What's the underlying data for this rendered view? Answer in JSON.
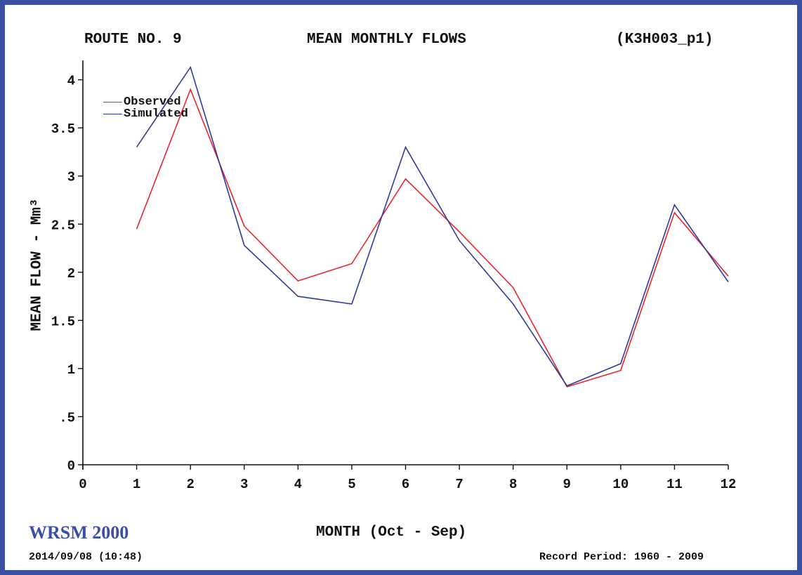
{
  "header": {
    "left": "ROUTE NO. 9",
    "center": "MEAN MONTHLY FLOWS",
    "right": "(K3H003_p1)"
  },
  "footer": {
    "brand": "WRSM 2000",
    "date": "2014/09/08 (10:48)",
    "record_period": "Record Period: 1960 - 2009"
  },
  "colors": {
    "frame": "#3b4fa3",
    "observed": "#e8262d",
    "simulated": "#2e3a9a"
  },
  "chart_data": {
    "type": "line",
    "title": "MEAN MONTHLY FLOWS",
    "xlabel": "MONTH (Oct - Sep)",
    "ylabel": "MEAN FLOW - Mm³",
    "xlim": [
      0,
      12
    ],
    "ylim": [
      0,
      4.2
    ],
    "x_ticks": [
      "0",
      "1",
      "2",
      "3",
      "4",
      "5",
      "6",
      "7",
      "8",
      "9",
      "10",
      "11",
      "12"
    ],
    "y_tick_values": [
      0,
      0.5,
      1,
      1.5,
      2,
      2.5,
      3,
      3.5,
      4
    ],
    "y_tick_labels": [
      "0",
      ".5",
      "1",
      "1.5",
      "2",
      "2.5",
      "3",
      "3.5",
      "4"
    ],
    "grid": false,
    "legend_position": "top-left",
    "x": [
      1,
      2,
      3,
      4,
      5,
      6,
      7,
      8,
      9,
      10,
      11,
      12
    ],
    "series": [
      {
        "name": "Observed",
        "color": "#e8262d",
        "values": [
          2.45,
          3.9,
          2.48,
          1.91,
          2.09,
          2.97,
          2.42,
          1.84,
          0.81,
          0.98,
          2.62,
          1.96
        ]
      },
      {
        "name": "Simulated",
        "color": "#2e3a9a",
        "values": [
          3.3,
          4.13,
          2.28,
          1.75,
          1.67,
          3.3,
          2.33,
          1.67,
          0.82,
          1.05,
          2.7,
          1.9
        ]
      }
    ]
  }
}
